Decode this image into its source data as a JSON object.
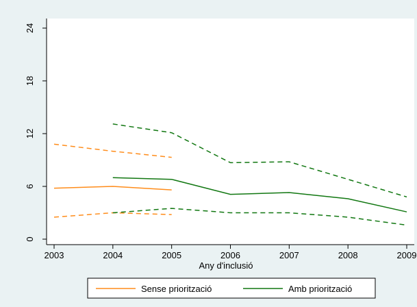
{
  "chart_data": {
    "type": "line",
    "title": "",
    "xlabel": "Any d'inclusió",
    "ylabel": "",
    "xlim": [
      2003,
      2009
    ],
    "ylim": [
      0,
      24
    ],
    "x_ticks": [
      "2003",
      "2004",
      "2005",
      "2006",
      "2007",
      "2008",
      "2009"
    ],
    "y_ticks": [
      "0",
      "6",
      "12",
      "18",
      "24"
    ],
    "grid": false,
    "legend_position": "bottom",
    "legend": [
      "Sense priorització",
      "Amb priorització"
    ],
    "series": [
      {
        "name": "Sense priorització",
        "color": "#ff8c1a",
        "style": "solid",
        "x": [
          2003,
          2004,
          2005
        ],
        "values": [
          5.8,
          6.0,
          5.6
        ]
      },
      {
        "color": "#ff8c1a",
        "style": "dashed",
        "x": [
          2003,
          2004,
          2005
        ],
        "values": [
          10.8,
          10.0,
          9.3
        ]
      },
      {
        "color": "#ff8c1a",
        "style": "dashed",
        "x": [
          2003,
          2004,
          2005
        ],
        "values": [
          2.5,
          3.0,
          2.8
        ]
      },
      {
        "name": "Amb priorització",
        "color": "#117711",
        "style": "solid",
        "x": [
          2004,
          2005,
          2006,
          2007,
          2008,
          2009
        ],
        "values": [
          7.0,
          6.8,
          5.1,
          5.3,
          4.6,
          3.1
        ]
      },
      {
        "color": "#117711",
        "style": "dashed",
        "x": [
          2004,
          2005,
          2006,
          2007,
          2008,
          2009
        ],
        "values": [
          13.1,
          12.1,
          8.7,
          8.8,
          6.8,
          4.8
        ]
      },
      {
        "color": "#117711",
        "style": "dashed",
        "x": [
          2004,
          2005,
          2006,
          2007,
          2008,
          2009
        ],
        "values": [
          3.0,
          3.5,
          3.0,
          3.0,
          2.5,
          1.6
        ]
      }
    ]
  }
}
